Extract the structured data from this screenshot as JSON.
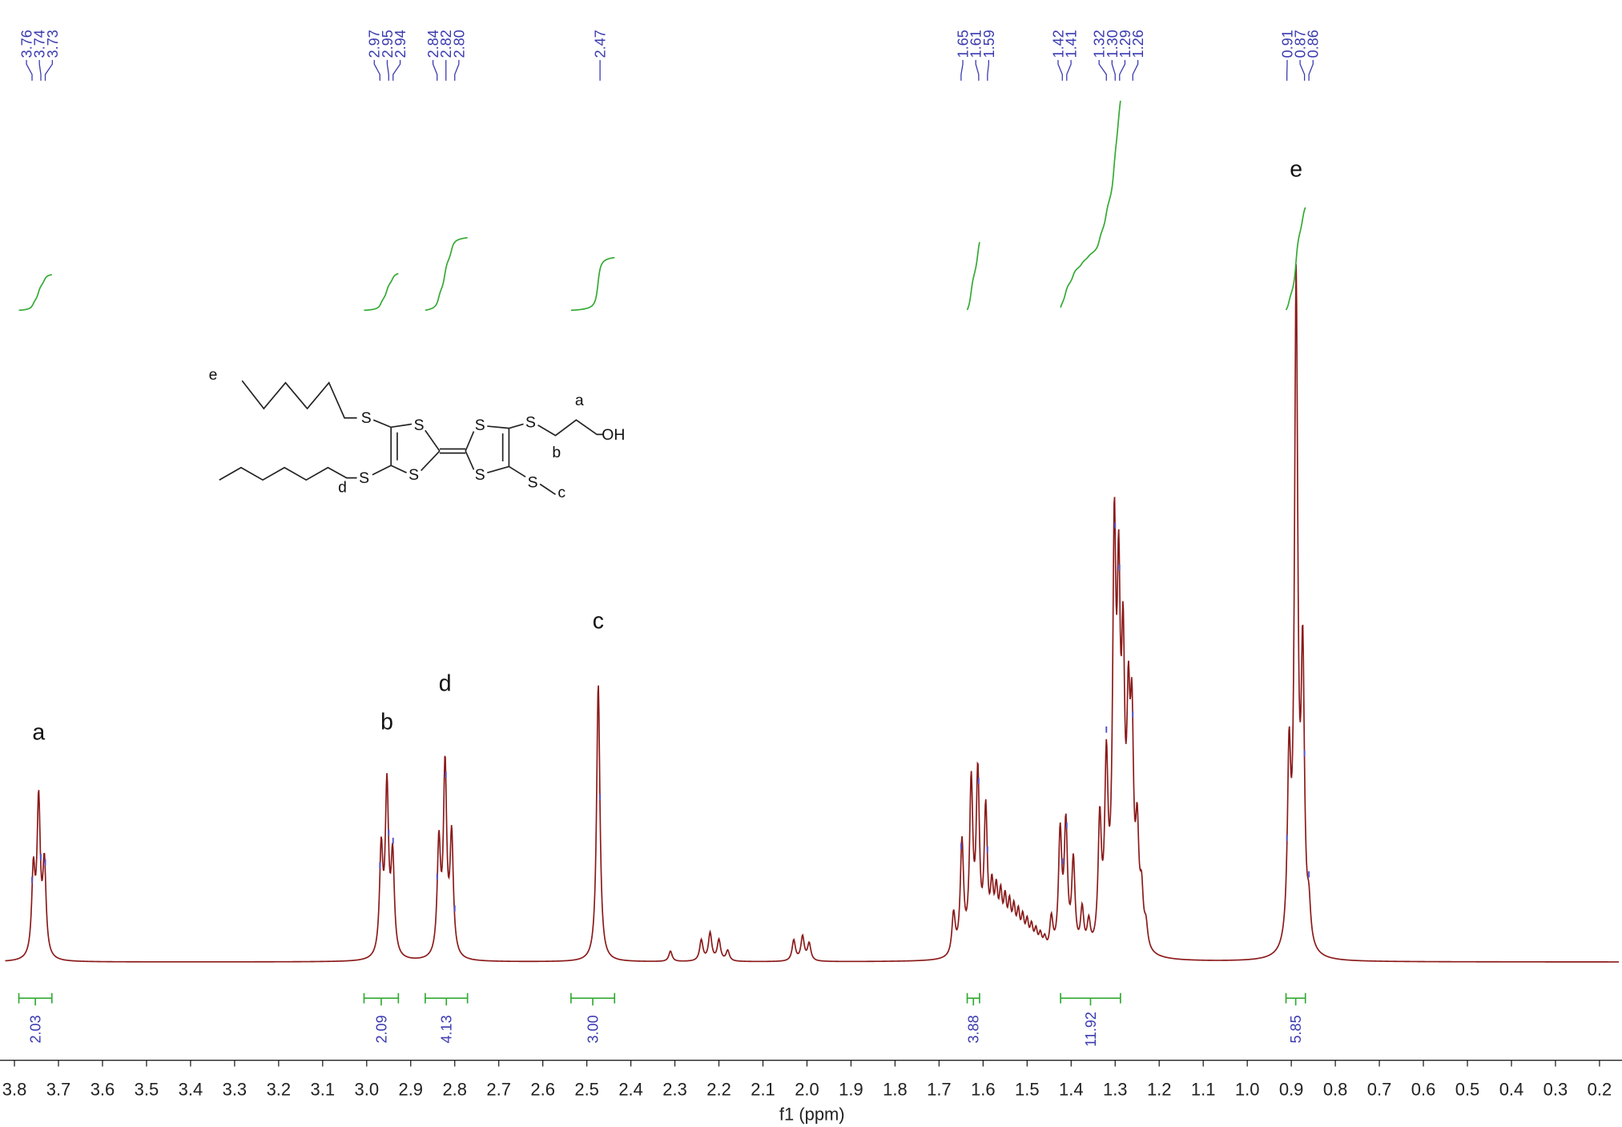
{
  "chart_data": {
    "type": "nmr",
    "x_label": "f1 (ppm)",
    "color": "#8b1a1a",
    "xlim": [
      3.821,
      0.156
    ],
    "ylim": [
      0,
      1
    ],
    "xticks": [
      3.8,
      3.7,
      3.6,
      3.5,
      3.4,
      3.3,
      3.2,
      3.1,
      {
        "value": 3.0,
        "label": "3.0"
      },
      2.9,
      2.8,
      2.7,
      2.6,
      2.5,
      2.4,
      2.3,
      2.2,
      2.1,
      {
        "value": 2.0,
        "label": "2.0"
      },
      1.9,
      1.8,
      1.7,
      1.6,
      1.5,
      1.4,
      1.3,
      1.2,
      1.1,
      {
        "value": 1.0,
        "label": "1.0"
      },
      0.9,
      0.8,
      0.7,
      0.6,
      0.5,
      0.4,
      0.3,
      0.2
    ],
    "x": [
      3.757,
      3.745,
      3.732,
      2.967,
      2.954,
      2.941,
      2.836,
      2.822,
      2.807,
      2.474,
      2.31,
      2.24,
      2.22,
      2.2,
      2.18,
      2.03,
      2.01,
      1.995,
      1.667,
      1.648,
      1.627,
      1.612,
      1.594,
      1.58,
      1.57,
      1.56,
      1.55,
      1.54,
      1.53,
      1.52,
      1.51,
      1.5,
      1.49,
      1.48,
      1.47,
      1.46,
      1.445,
      1.425,
      1.412,
      1.395,
      1.375,
      1.36,
      1.335,
      1.32,
      1.302,
      1.292,
      1.282,
      1.27,
      1.262,
      1.25,
      1.24,
      1.23,
      0.905,
      0.889,
      0.874,
      0.86
    ],
    "values": [
      0.12,
      0.22,
      0.13,
      0.15,
      0.24,
      0.14,
      0.16,
      0.27,
      0.17,
      0.4,
      0.015,
      0.03,
      0.04,
      0.03,
      0.015,
      0.03,
      0.035,
      0.025,
      0.06,
      0.16,
      0.24,
      0.25,
      0.2,
      0.08,
      0.075,
      0.07,
      0.065,
      0.06,
      0.055,
      0.05,
      0.045,
      0.04,
      0.035,
      0.03,
      0.025,
      0.02,
      0.05,
      0.17,
      0.18,
      0.13,
      0.06,
      0.04,
      0.18,
      0.25,
      0.55,
      0.44,
      0.36,
      0.28,
      0.28,
      0.15,
      0.07,
      0.03,
      0.26,
      0.95,
      0.4,
      0.05
    ],
    "peak_labels": [
      3.76,
      3.74,
      3.73,
      2.97,
      2.95,
      2.94,
      2.84,
      2.82,
      {
        "value": 2.8,
        "label": "2.80"
      },
      2.47,
      1.65,
      1.61,
      1.59,
      1.42,
      1.41,
      1.32,
      {
        "value": 1.3,
        "label": "1.30"
      },
      1.29,
      1.26,
      0.91,
      0.87,
      0.86
    ],
    "integrals": [
      {
        "from": 3.79,
        "to": 3.715,
        "value": 2.03
      },
      {
        "from": 3.006,
        "to": 2.928,
        "value": 2.09
      },
      {
        "from": 2.867,
        "to": 2.771,
        "value": 4.13
      },
      {
        "from": 2.536,
        "to": 2.437,
        "value": {
          "value": 3.0,
          "label": "3.00"
        }
      },
      {
        "from": 1.636,
        "to": 1.608,
        "value": 3.88
      },
      {
        "from": 1.424,
        "to": 1.288,
        "value": 11.92
      },
      {
        "from": 0.912,
        "to": 0.868,
        "value": 5.85
      }
    ],
    "annotations": [
      {
        "text": "a",
        "x": 3.745,
        "y": 0.32
      },
      {
        "text": "b",
        "x": 2.954,
        "y": 0.335
      },
      {
        "text": "d",
        "x": 2.822,
        "y": 0.39
      },
      {
        "text": "c",
        "x": 2.474,
        "y": 0.48
      },
      {
        "text": "e",
        "x": 0.889,
        "y": 1.13
      }
    ],
    "structure": {
      "atoms": [
        "e",
        "S",
        "S",
        "S",
        "S",
        "S",
        "S",
        "S",
        "S",
        "a",
        "b",
        "OH",
        "d",
        "c"
      ]
    }
  }
}
